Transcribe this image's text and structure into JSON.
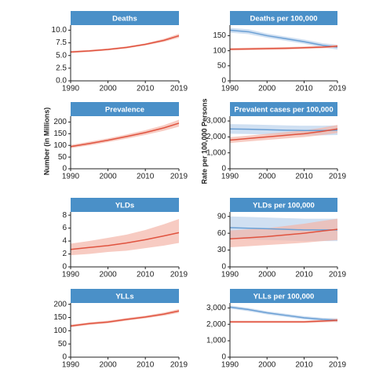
{
  "axis_labels": {
    "left": "Number (in Millions)",
    "right": "Rate per 100,000 Persons"
  },
  "chart_data": [
    {
      "type": "line",
      "title": "Deaths",
      "x": [
        1990,
        1995,
        2000,
        2005,
        2010,
        2015,
        2019
      ],
      "xlim": [
        1990,
        2019
      ],
      "xticks": [
        1990,
        2000,
        2010,
        2019
      ],
      "ylim": [
        0,
        11
      ],
      "yticks": [
        {
          "value": 0,
          "label": "0.0"
        },
        2.5,
        {
          "value": 5,
          "label": "5.0"
        },
        7.5,
        {
          "value": 10,
          "label": "10.0"
        }
      ],
      "series": [
        {
          "color": "#e0533f",
          "band_color": "#f4b5a8",
          "values": [
            5.7,
            5.9,
            6.2,
            6.6,
            7.2,
            8.0,
            8.9
          ],
          "lower": [
            5.5,
            5.7,
            6.0,
            6.4,
            7.0,
            7.7,
            8.5
          ],
          "upper": [
            5.9,
            6.1,
            6.4,
            6.8,
            7.4,
            8.3,
            9.3
          ]
        }
      ]
    },
    {
      "type": "line",
      "title": "Deaths per 100,000",
      "x": [
        1990,
        1995,
        2000,
        2005,
        2010,
        2015,
        2019
      ],
      "xlim": [
        1990,
        2019
      ],
      "xticks": [
        1990,
        2000,
        2010,
        2019
      ],
      "ylim": [
        0,
        185
      ],
      "yticks": [
        0,
        50,
        100,
        150
      ],
      "series": [
        {
          "color": "#6a9fd4",
          "band_color": "#bcd3ec",
          "values": [
            168,
            163,
            150,
            140,
            130,
            118,
            112
          ],
          "lower": [
            160,
            155,
            143,
            133,
            123,
            111,
            104
          ],
          "upper": [
            176,
            171,
            157,
            147,
            137,
            125,
            120
          ]
        },
        {
          "color": "#e0533f",
          "band_color": "#f4b5a8",
          "values": [
            105,
            106,
            107,
            108,
            110,
            112,
            115
          ],
          "lower": [
            101,
            102,
            103,
            104,
            106,
            108,
            110
          ],
          "upper": [
            109,
            110,
            111,
            112,
            114,
            116,
            120
          ]
        }
      ]
    },
    {
      "type": "line",
      "title": "Prevalence",
      "x": [
        1990,
        1995,
        2000,
        2005,
        2010,
        2015,
        2019
      ],
      "xlim": [
        1990,
        2019
      ],
      "xticks": [
        1990,
        2000,
        2010,
        2019
      ],
      "ylim": [
        0,
        225
      ],
      "yticks": [
        0,
        50,
        100,
        150,
        200
      ],
      "series": [
        {
          "color": "#e0533f",
          "band_color": "#f4b5a8",
          "values": [
            95,
            108,
            122,
            138,
            155,
            175,
            195
          ],
          "lower": [
            88,
            100,
            114,
            129,
            145,
            163,
            180
          ],
          "upper": [
            102,
            116,
            130,
            147,
            165,
            187,
            210
          ]
        }
      ]
    },
    {
      "type": "line",
      "title": "Prevalent cases per 100,000",
      "x": [
        1990,
        1995,
        2000,
        2005,
        2010,
        2015,
        2019
      ],
      "xlim": [
        1990,
        2019
      ],
      "xticks": [
        1990,
        2000,
        2010,
        2019
      ],
      "ylim": [
        0,
        3300
      ],
      "yticks": [
        0,
        {
          "value": 1000,
          "label": "1,000"
        },
        {
          "value": 2000,
          "label": "2,000"
        },
        {
          "value": 3000,
          "label": "3,000"
        }
      ],
      "series": [
        {
          "color": "#6a9fd4",
          "band_color": "#bcd3ec",
          "values": [
            2500,
            2480,
            2450,
            2420,
            2400,
            2400,
            2420
          ],
          "lower": [
            2200,
            2180,
            2150,
            2120,
            2100,
            2100,
            2120
          ],
          "upper": [
            2800,
            2780,
            2750,
            2720,
            2700,
            2700,
            2720
          ]
        },
        {
          "color": "#e0533f",
          "band_color": "#f4b5a8",
          "values": [
            1800,
            1900,
            2000,
            2100,
            2200,
            2350,
            2500
          ],
          "lower": [
            1620,
            1720,
            1810,
            1900,
            1990,
            2120,
            2250
          ],
          "upper": [
            1980,
            2080,
            2190,
            2300,
            2410,
            2580,
            2750
          ]
        }
      ]
    },
    {
      "type": "line",
      "title": "YLDs",
      "x": [
        1990,
        1995,
        2000,
        2005,
        2010,
        2015,
        2019
      ],
      "xlim": [
        1990,
        2019
      ],
      "xticks": [
        1990,
        2000,
        2010,
        2019
      ],
      "ylim": [
        0,
        8.5
      ],
      "yticks": [
        0,
        2,
        4,
        6,
        8
      ],
      "series": [
        {
          "color": "#e0533f",
          "band_color": "#f4b5a8",
          "values": [
            2.7,
            3.0,
            3.3,
            3.7,
            4.2,
            4.8,
            5.3
          ],
          "lower": [
            1.8,
            2.0,
            2.3,
            2.5,
            2.9,
            3.3,
            3.7
          ],
          "upper": [
            3.6,
            4.0,
            4.5,
            5.0,
            5.7,
            6.6,
            7.4
          ]
        }
      ]
    },
    {
      "type": "line",
      "title": "YLDs per 100,000",
      "x": [
        1990,
        1995,
        2000,
        2005,
        2010,
        2015,
        2019
      ],
      "xlim": [
        1990,
        2019
      ],
      "xticks": [
        1990,
        2000,
        2010,
        2019
      ],
      "ylim": [
        0,
        98
      ],
      "yticks": [
        0,
        30,
        60,
        90
      ],
      "series": [
        {
          "color": "#6a9fd4",
          "band_color": "#bcd3ec",
          "values": [
            70,
            69,
            68,
            67,
            66,
            66,
            66
          ],
          "lower": [
            50,
            49,
            48,
            47,
            46,
            46,
            46
          ],
          "upper": [
            90,
            89,
            88,
            87,
            86,
            86,
            86
          ]
        },
        {
          "color": "#e0533f",
          "band_color": "#f4b5a8",
          "values": [
            50,
            52,
            54,
            57,
            60,
            64,
            67
          ],
          "lower": [
            35,
            37,
            39,
            41,
            43,
            46,
            48
          ],
          "upper": [
            65,
            67,
            69,
            73,
            77,
            82,
            86
          ]
        }
      ]
    },
    {
      "type": "line",
      "title": "YLLs",
      "x": [
        1990,
        1995,
        2000,
        2005,
        2010,
        2015,
        2019
      ],
      "xlim": [
        1990,
        2019
      ],
      "xticks": [
        1990,
        2000,
        2010,
        2019
      ],
      "ylim": [
        0,
        205
      ],
      "yticks": [
        0,
        50,
        100,
        150,
        200
      ],
      "series": [
        {
          "color": "#e0533f",
          "band_color": "#f4b5a8",
          "values": [
            118,
            127,
            133,
            143,
            152,
            163,
            175
          ],
          "lower": [
            113,
            122,
            128,
            138,
            147,
            157,
            168
          ],
          "upper": [
            123,
            132,
            138,
            148,
            157,
            169,
            182
          ]
        }
      ]
    },
    {
      "type": "line",
      "title": "YLLs per 100,000",
      "x": [
        1990,
        1995,
        2000,
        2005,
        2010,
        2015,
        2019
      ],
      "xlim": [
        1990,
        2019
      ],
      "xticks": [
        1990,
        2000,
        2010,
        2019
      ],
      "ylim": [
        0,
        3300
      ],
      "yticks": [
        0,
        {
          "value": 1000,
          "label": "1,000"
        },
        {
          "value": 2000,
          "label": "2,000"
        },
        {
          "value": 3000,
          "label": "3,000"
        }
      ],
      "series": [
        {
          "color": "#6a9fd4",
          "band_color": "#bcd3ec",
          "values": [
            3050,
            2900,
            2700,
            2550,
            2400,
            2300,
            2250
          ],
          "lower": [
            2950,
            2800,
            2600,
            2450,
            2300,
            2200,
            2130
          ],
          "upper": [
            3150,
            3000,
            2800,
            2650,
            2500,
            2400,
            2370
          ]
        },
        {
          "color": "#e0533f",
          "band_color": "#f4b5a8",
          "values": [
            2150,
            2150,
            2150,
            2150,
            2150,
            2200,
            2250
          ],
          "lower": [
            2080,
            2080,
            2080,
            2080,
            2080,
            2120,
            2150
          ],
          "upper": [
            2220,
            2220,
            2220,
            2220,
            2220,
            2280,
            2350
          ]
        }
      ]
    }
  ]
}
